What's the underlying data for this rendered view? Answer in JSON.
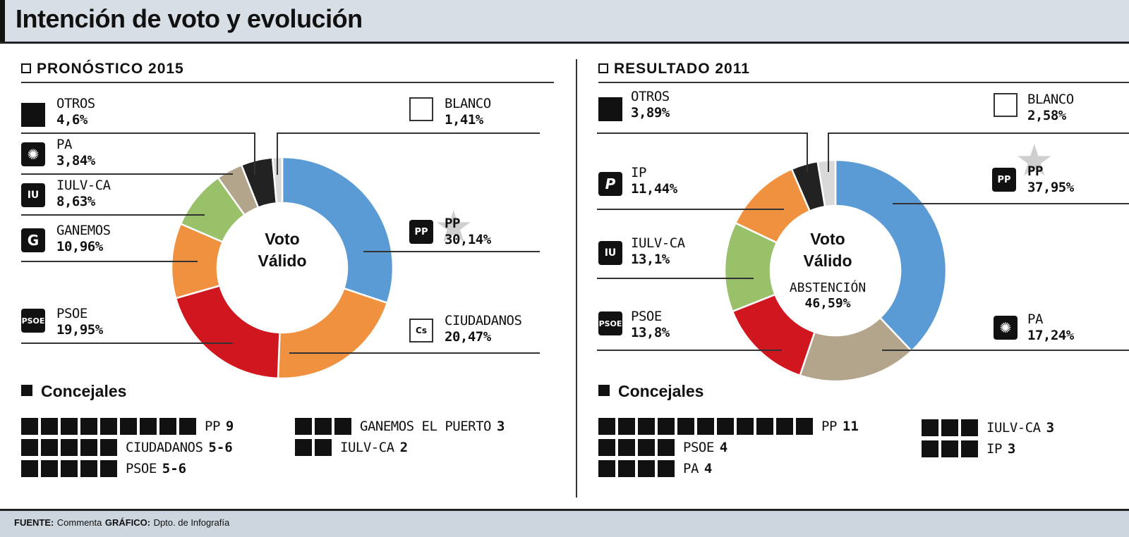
{
  "title": "Intención de voto y evolución",
  "footer": {
    "fuente_label": "FUENTE:",
    "fuente": "Commenta",
    "grafico_label": "GRÁFICO:",
    "grafico": "Dpto. de Infografía"
  },
  "chart_data": [
    {
      "type": "pie",
      "title": "PRONÓSTICO 2015",
      "center_label": [
        "Voto",
        "Válido"
      ],
      "series": [
        {
          "name": "PP",
          "value": 30.14,
          "color": "#5b9bd5"
        },
        {
          "name": "CIUDADANOS",
          "value": 20.47,
          "color": "#f0913f"
        },
        {
          "name": "PSOE",
          "value": 19.95,
          "color": "#d0161e"
        },
        {
          "name": "GANEMOS",
          "value": 10.96,
          "color": "#f0913f"
        },
        {
          "name": "IULV-CA",
          "value": 8.63,
          "color": "#99c16a"
        },
        {
          "name": "PA",
          "value": 3.84,
          "color": "#b3a48c"
        },
        {
          "name": "OTROS",
          "value": 4.6,
          "color": "#222222"
        },
        {
          "name": "BLANCO",
          "value": 1.41,
          "color": "#d9d9d9"
        }
      ],
      "labels": [
        {
          "name": "OTROS",
          "pct": "4,6%",
          "icon": "solid-square-icon"
        },
        {
          "name": "PA",
          "pct": "3,84%",
          "icon": "pa-icon"
        },
        {
          "name": "IULV-CA",
          "pct": "8,63%",
          "icon": "iulv-icon"
        },
        {
          "name": "GANEMOS",
          "pct": "10,96%",
          "icon": "ganemos-icon"
        },
        {
          "name": "PSOE",
          "pct": "19,95%",
          "icon": "psoe-icon"
        },
        {
          "name": "BLANCO",
          "pct": "1,41%",
          "icon": "empty-square-icon"
        },
        {
          "name": "PP",
          "pct": "30,14%",
          "icon": "pp-icon"
        },
        {
          "name": "CIUDADANOS",
          "pct": "20,47%",
          "icon": "ciudadanos-icon"
        }
      ],
      "concejales_title": "Concejales",
      "concejales": [
        {
          "party": "PP",
          "seats": 9,
          "label": "9"
        },
        {
          "party": "CIUDADANOS",
          "seats": 5,
          "label": "5-6"
        },
        {
          "party": "PSOE",
          "seats": 5,
          "label": "5-6"
        },
        {
          "party": "GANEMOS EL PUERTO",
          "seats": 3,
          "label": "3"
        },
        {
          "party": "IULV-CA",
          "seats": 2,
          "label": "2"
        }
      ]
    },
    {
      "type": "pie",
      "title": "RESULTADO 2011",
      "center_label": [
        "Voto",
        "Válido"
      ],
      "abstencion_label": "ABSTENCIÓN",
      "abstencion": "46,59%",
      "series": [
        {
          "name": "PP",
          "value": 37.95,
          "color": "#5b9bd5"
        },
        {
          "name": "PA",
          "value": 17.24,
          "color": "#b3a48c"
        },
        {
          "name": "PSOE",
          "value": 13.8,
          "color": "#d0161e"
        },
        {
          "name": "IULV-CA",
          "value": 13.1,
          "color": "#99c16a"
        },
        {
          "name": "IP",
          "value": 11.44,
          "color": "#f0913f"
        },
        {
          "name": "OTROS",
          "value": 3.89,
          "color": "#222222"
        },
        {
          "name": "BLANCO",
          "value": 2.58,
          "color": "#d9d9d9"
        }
      ],
      "labels": [
        {
          "name": "OTROS",
          "pct": "3,89%",
          "icon": "solid-square-icon"
        },
        {
          "name": "IP",
          "pct": "11,44%",
          "icon": "ip-icon"
        },
        {
          "name": "IULV-CA",
          "pct": "13,1%",
          "icon": "iulv-icon"
        },
        {
          "name": "PSOE",
          "pct": "13,8%",
          "icon": "psoe-icon"
        },
        {
          "name": "BLANCO",
          "pct": "2,58%",
          "icon": "empty-square-icon"
        },
        {
          "name": "PP",
          "pct": "37,95%",
          "icon": "pp-icon"
        },
        {
          "name": "PA",
          "pct": "17,24%",
          "icon": "pa-icon"
        }
      ],
      "concejales_title": "Concejales",
      "concejales": [
        {
          "party": "PP",
          "seats": 11,
          "label": "11"
        },
        {
          "party": "PSOE",
          "seats": 4,
          "label": "4"
        },
        {
          "party": "PA",
          "seats": 4,
          "label": "4"
        },
        {
          "party": "IULV-CA",
          "seats": 3,
          "label": "3"
        },
        {
          "party": "IP",
          "seats": 3,
          "label": "3"
        }
      ]
    }
  ]
}
